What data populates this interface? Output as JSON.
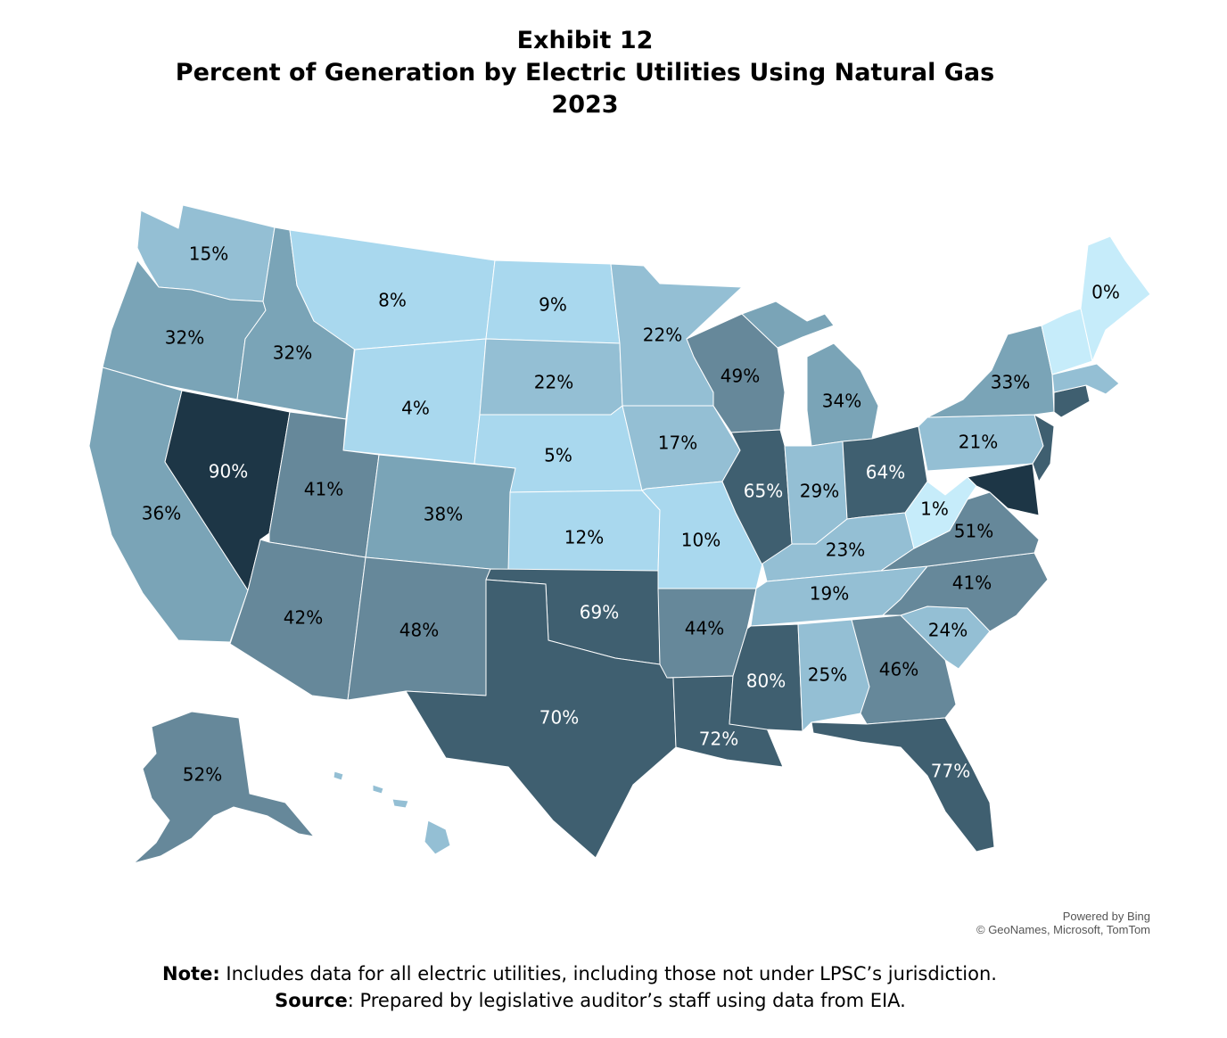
{
  "title": {
    "line1": "Exhibit 12",
    "line2": "Percent of Generation by Electric Utilities Using Natural Gas",
    "line3": "2023"
  },
  "colors": {
    "c0": "#c6ecfa",
    "c1": "#a9d8ee",
    "c2": "#94bfd4",
    "c3": "#7aa4b7",
    "c4": "#66889a",
    "c5": "#3f5f70",
    "c6": "#1d3646",
    "border": "#ffffff"
  },
  "chart_data": {
    "type": "choropleth",
    "measure": "Percent of generation by electric utilities using natural gas (2023)",
    "states": [
      {
        "state": "WA",
        "value": 15,
        "label": "15%"
      },
      {
        "state": "OR",
        "value": 32,
        "label": "32%"
      },
      {
        "state": "CA",
        "value": 36,
        "label": "36%"
      },
      {
        "state": "ID",
        "value": 32,
        "label": "32%"
      },
      {
        "state": "NV",
        "value": 90,
        "label": "90%"
      },
      {
        "state": "MT",
        "value": 8,
        "label": "8%"
      },
      {
        "state": "WY",
        "value": 4,
        "label": "4%"
      },
      {
        "state": "UT",
        "value": 41,
        "label": "41%"
      },
      {
        "state": "AZ",
        "value": 42,
        "label": "42%"
      },
      {
        "state": "CO",
        "value": 38,
        "label": "38%"
      },
      {
        "state": "NM",
        "value": 48,
        "label": "48%"
      },
      {
        "state": "ND",
        "value": 9,
        "label": "9%"
      },
      {
        "state": "SD",
        "value": 22,
        "label": "22%"
      },
      {
        "state": "NE",
        "value": 5,
        "label": "5%"
      },
      {
        "state": "KS",
        "value": 12,
        "label": "12%"
      },
      {
        "state": "OK",
        "value": 69,
        "label": "69%"
      },
      {
        "state": "TX",
        "value": 70,
        "label": "70%"
      },
      {
        "state": "MN",
        "value": 22,
        "label": "22%"
      },
      {
        "state": "IA",
        "value": 17,
        "label": "17%"
      },
      {
        "state": "MO",
        "value": 10,
        "label": "10%"
      },
      {
        "state": "AR",
        "value": 44,
        "label": "44%"
      },
      {
        "state": "LA",
        "value": 72,
        "label": "72%"
      },
      {
        "state": "WI",
        "value": 49,
        "label": "49%"
      },
      {
        "state": "IL",
        "value": 65,
        "label": "65%"
      },
      {
        "state": "MI",
        "value": 34,
        "label": "34%"
      },
      {
        "state": "IN",
        "value": 29,
        "label": "29%"
      },
      {
        "state": "OH",
        "value": 64,
        "label": "64%"
      },
      {
        "state": "KY",
        "value": 23,
        "label": "23%"
      },
      {
        "state": "TN",
        "value": 19,
        "label": "19%"
      },
      {
        "state": "MS",
        "value": 80,
        "label": "80%"
      },
      {
        "state": "AL",
        "value": 25,
        "label": "25%"
      },
      {
        "state": "GA",
        "value": 46,
        "label": "46%"
      },
      {
        "state": "FL",
        "value": 77,
        "label": "77%"
      },
      {
        "state": "SC",
        "value": 24,
        "label": "24%"
      },
      {
        "state": "NC",
        "value": 41,
        "label": "41%"
      },
      {
        "state": "VA",
        "value": 51,
        "label": "51%"
      },
      {
        "state": "WV",
        "value": 1,
        "label": "1%"
      },
      {
        "state": "PA",
        "value": 21,
        "label": "21%"
      },
      {
        "state": "NY",
        "value": 33,
        "label": "33%"
      },
      {
        "state": "ME",
        "value": 0,
        "label": "0%"
      },
      {
        "state": "AK",
        "value": 52,
        "label": "52%"
      }
    ]
  },
  "attribution": {
    "line1": "Powered by Bing",
    "line2": "© GeoNames, Microsoft, TomTom"
  },
  "note": {
    "note_label": "Note:",
    "note_text": " Includes data for all electric utilities, including those not under LPSC’s jurisdiction.",
    "source_label": "Source",
    "source_text": ": Prepared by legislative auditor’s staff using data from EIA."
  }
}
